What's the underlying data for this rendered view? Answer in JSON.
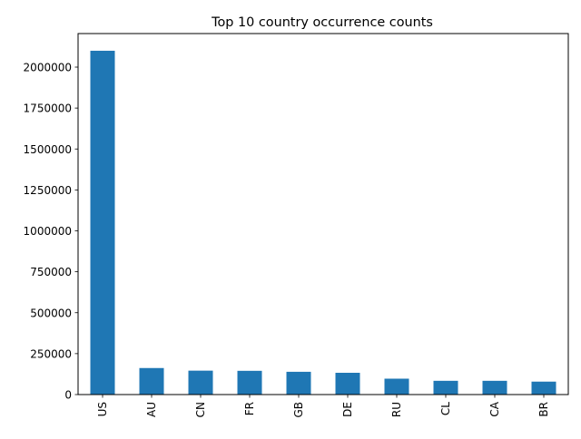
{
  "chart_data": {
    "type": "bar",
    "title": "Top 10 country occurrence counts",
    "xlabel": "",
    "ylabel": "",
    "categories": [
      "US",
      "AU",
      "CN",
      "FR",
      "GB",
      "DE",
      "RU",
      "CL",
      "CA",
      "BR"
    ],
    "values": [
      2100000,
      162000,
      146000,
      145000,
      139000,
      133000,
      97000,
      84000,
      84000,
      79000
    ],
    "ylim": [
      0,
      2205000
    ],
    "yticks": [
      0,
      250000,
      500000,
      750000,
      1000000,
      1250000,
      1500000,
      1750000,
      2000000
    ],
    "ytick_labels": [
      "0",
      "250000",
      "500000",
      "750000",
      "1000000",
      "1250000",
      "1500000",
      "1750000",
      "2000000"
    ],
    "grid": false,
    "bar_color": "#1f77b4"
  }
}
